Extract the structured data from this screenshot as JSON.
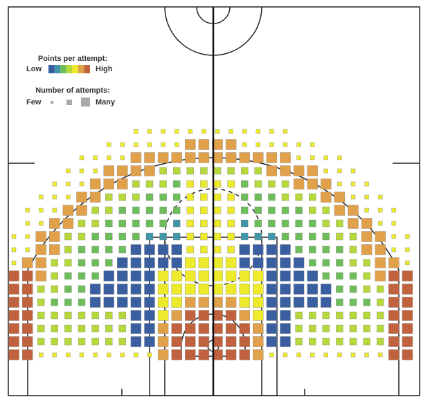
{
  "chart_data": {
    "type": "heatmap",
    "ppa_title": "Points per attempt:",
    "ppa_low": "Low",
    "ppa_high": "High",
    "colors": [
      "#3a5fa0",
      "#3f96a8",
      "#6dbd5a",
      "#b5d93a",
      "#ecea2a",
      "#e0a14a",
      "#c0623e"
    ],
    "attempts_title": "Number of attempts:",
    "attempts_few": "Few",
    "attempts_many": "Many",
    "ppa_level": [
      [
        null,
        null,
        null,
        null,
        null,
        null,
        null,
        null,
        null,
        4,
        4,
        4,
        4,
        4,
        4,
        4,
        4,
        4,
        4,
        4,
        4,
        null,
        null,
        null,
        null,
        null,
        null,
        null,
        null,
        null
      ],
      [
        null,
        null,
        null,
        null,
        null,
        null,
        null,
        4,
        4,
        4,
        4,
        4,
        4,
        5,
        5,
        5,
        5,
        4,
        4,
        4,
        4,
        4,
        4,
        null,
        null,
        null,
        null,
        null,
        null,
        null
      ],
      [
        null,
        null,
        null,
        null,
        null,
        4,
        4,
        4,
        4,
        5,
        5,
        5,
        5,
        5,
        5,
        5,
        5,
        5,
        5,
        5,
        5,
        4,
        4,
        4,
        4,
        null,
        null,
        null,
        null,
        null
      ],
      [
        null,
        null,
        null,
        null,
        4,
        4,
        4,
        5,
        5,
        5,
        5,
        3,
        3,
        3,
        3,
        3,
        3,
        3,
        3,
        5,
        5,
        5,
        5,
        4,
        4,
        4,
        null,
        null,
        null,
        null
      ],
      [
        null,
        null,
        null,
        4,
        4,
        4,
        5,
        5,
        5,
        3,
        3,
        3,
        2,
        4,
        4,
        4,
        4,
        2,
        3,
        3,
        3,
        5,
        5,
        5,
        4,
        4,
        4,
        null,
        null,
        null
      ],
      [
        null,
        null,
        4,
        4,
        4,
        5,
        5,
        3,
        3,
        3,
        2,
        2,
        2,
        4,
        4,
        4,
        4,
        2,
        2,
        2,
        3,
        3,
        3,
        5,
        5,
        4,
        4,
        4,
        null,
        null
      ],
      [
        null,
        4,
        4,
        4,
        5,
        5,
        3,
        3,
        2,
        2,
        2,
        2,
        2,
        4,
        4,
        4,
        4,
        2,
        2,
        2,
        2,
        2,
        3,
        3,
        5,
        5,
        4,
        4,
        4,
        null
      ],
      [
        null,
        4,
        4,
        5,
        5,
        3,
        3,
        2,
        2,
        2,
        2,
        2,
        1,
        4,
        4,
        4,
        4,
        1,
        2,
        2,
        2,
        2,
        2,
        3,
        3,
        5,
        5,
        4,
        4,
        null
      ],
      [
        4,
        4,
        5,
        5,
        3,
        3,
        2,
        2,
        2,
        2,
        1,
        1,
        1,
        4,
        4,
        4,
        4,
        1,
        1,
        1,
        2,
        2,
        2,
        2,
        3,
        3,
        5,
        5,
        4,
        4
      ],
      [
        4,
        4,
        5,
        5,
        3,
        2,
        2,
        2,
        2,
        0,
        0,
        0,
        0,
        4,
        4,
        4,
        4,
        0,
        0,
        0,
        0,
        2,
        2,
        2,
        2,
        3,
        5,
        5,
        4,
        4
      ],
      [
        4,
        5,
        5,
        3,
        3,
        2,
        2,
        2,
        0,
        0,
        0,
        0,
        0,
        4,
        4,
        4,
        4,
        0,
        0,
        0,
        0,
        0,
        2,
        2,
        2,
        3,
        3,
        5,
        5,
        4
      ],
      [
        6,
        6,
        5,
        3,
        2,
        2,
        2,
        0,
        0,
        0,
        0,
        4,
        4,
        4,
        4,
        4,
        4,
        4,
        4,
        0,
        0,
        0,
        0,
        2,
        2,
        2,
        3,
        5,
        6,
        6
      ],
      [
        6,
        6,
        3,
        3,
        2,
        2,
        0,
        0,
        0,
        0,
        0,
        4,
        4,
        4,
        4,
        4,
        4,
        4,
        4,
        0,
        0,
        0,
        0,
        0,
        2,
        2,
        3,
        3,
        6,
        6
      ],
      [
        6,
        6,
        3,
        2,
        2,
        2,
        0,
        0,
        0,
        0,
        0,
        4,
        4,
        5,
        5,
        5,
        5,
        4,
        4,
        0,
        0,
        0,
        0,
        0,
        2,
        2,
        2,
        3,
        6,
        6
      ],
      [
        6,
        6,
        3,
        3,
        3,
        3,
        3,
        3,
        3,
        0,
        0,
        4,
        5,
        6,
        6,
        6,
        6,
        5,
        4,
        0,
        0,
        3,
        3,
        3,
        3,
        3,
        3,
        3,
        6,
        6
      ],
      [
        6,
        6,
        3,
        3,
        3,
        3,
        3,
        3,
        3,
        0,
        0,
        5,
        6,
        6,
        6,
        6,
        6,
        6,
        5,
        0,
        0,
        3,
        3,
        3,
        3,
        3,
        3,
        3,
        6,
        6
      ],
      [
        6,
        6,
        3,
        3,
        3,
        3,
        3,
        3,
        3,
        0,
        0,
        5,
        6,
        6,
        6,
        6,
        6,
        6,
        5,
        0,
        0,
        3,
        3,
        3,
        3,
        3,
        3,
        3,
        6,
        6
      ],
      [
        6,
        6,
        4,
        4,
        4,
        4,
        4,
        4,
        4,
        4,
        4,
        5,
        6,
        6,
        6,
        6,
        6,
        6,
        5,
        4,
        4,
        4,
        4,
        4,
        4,
        4,
        4,
        4,
        6,
        6
      ]
    ],
    "attempts": [
      [
        null,
        null,
        null,
        null,
        null,
        null,
        null,
        null,
        null,
        1,
        1,
        1,
        1,
        1,
        1,
        1,
        1,
        1,
        1,
        1,
        1,
        null,
        null,
        null,
        null,
        null,
        null,
        null,
        null,
        null
      ],
      [
        null,
        null,
        null,
        null,
        null,
        null,
        null,
        1,
        1,
        1,
        1,
        1,
        1,
        3,
        3,
        3,
        3,
        1,
        1,
        1,
        1,
        1,
        1,
        null,
        null,
        null,
        null,
        null,
        null,
        null
      ],
      [
        null,
        null,
        null,
        null,
        null,
        1,
        1,
        1,
        1,
        3,
        3,
        3,
        3,
        3,
        3,
        3,
        3,
        3,
        3,
        3,
        3,
        1,
        1,
        1,
        1,
        null,
        null,
        null,
        null,
        null
      ],
      [
        null,
        null,
        null,
        null,
        1,
        1,
        1,
        3,
        3,
        3,
        3,
        2,
        2,
        2,
        2,
        2,
        2,
        2,
        2,
        3,
        3,
        3,
        3,
        1,
        1,
        1,
        null,
        null,
        null,
        null
      ],
      [
        null,
        null,
        null,
        1,
        1,
        1,
        3,
        3,
        3,
        2,
        2,
        2,
        2,
        2,
        2,
        2,
        2,
        2,
        2,
        2,
        2,
        3,
        3,
        3,
        1,
        1,
        1,
        null,
        null,
        null
      ],
      [
        null,
        null,
        1,
        1,
        1,
        3,
        3,
        2,
        2,
        2,
        2,
        2,
        2,
        2,
        2,
        2,
        2,
        2,
        2,
        2,
        2,
        2,
        2,
        3,
        3,
        1,
        1,
        1,
        null,
        null
      ],
      [
        null,
        1,
        1,
        1,
        3,
        3,
        2,
        2,
        2,
        2,
        2,
        2,
        2,
        2,
        2,
        2,
        2,
        2,
        2,
        2,
        2,
        2,
        2,
        2,
        3,
        3,
        1,
        1,
        1,
        null
      ],
      [
        null,
        1,
        1,
        3,
        3,
        2,
        2,
        2,
        2,
        2,
        2,
        2,
        2,
        2,
        2,
        2,
        2,
        2,
        2,
        2,
        2,
        2,
        2,
        2,
        2,
        3,
        3,
        1,
        1,
        null
      ],
      [
        1,
        1,
        3,
        3,
        2,
        2,
        2,
        2,
        2,
        2,
        2,
        2,
        2,
        2,
        2,
        2,
        2,
        2,
        2,
        2,
        2,
        2,
        2,
        2,
        2,
        2,
        3,
        3,
        1,
        1
      ],
      [
        1,
        1,
        3,
        3,
        2,
        2,
        2,
        2,
        2,
        3,
        3,
        3,
        3,
        2,
        2,
        2,
        2,
        3,
        3,
        3,
        3,
        2,
        2,
        2,
        2,
        2,
        3,
        3,
        1,
        1
      ],
      [
        1,
        3,
        3,
        2,
        2,
        2,
        2,
        2,
        3,
        3,
        3,
        3,
        3,
        3,
        3,
        3,
        3,
        3,
        3,
        3,
        3,
        3,
        2,
        2,
        2,
        2,
        2,
        3,
        3,
        1
      ],
      [
        3,
        3,
        3,
        2,
        2,
        2,
        2,
        3,
        3,
        3,
        3,
        3,
        3,
        3,
        3,
        3,
        3,
        3,
        3,
        3,
        3,
        3,
        3,
        2,
        2,
        2,
        2,
        3,
        3,
        3
      ],
      [
        3,
        3,
        2,
        2,
        2,
        2,
        3,
        3,
        3,
        3,
        3,
        3,
        3,
        3,
        3,
        3,
        3,
        3,
        3,
        3,
        3,
        3,
        3,
        3,
        2,
        2,
        2,
        2,
        3,
        3
      ],
      [
        3,
        3,
        2,
        2,
        2,
        2,
        3,
        3,
        3,
        3,
        3,
        3,
        3,
        3,
        3,
        3,
        3,
        3,
        3,
        3,
        3,
        3,
        3,
        3,
        2,
        2,
        2,
        2,
        3,
        3
      ],
      [
        3,
        3,
        2,
        2,
        2,
        2,
        2,
        2,
        2,
        3,
        3,
        3,
        3,
        3,
        3,
        3,
        3,
        3,
        3,
        3,
        3,
        2,
        2,
        2,
        2,
        2,
        2,
        2,
        3,
        3
      ],
      [
        3,
        3,
        2,
        2,
        2,
        2,
        2,
        2,
        2,
        3,
        3,
        3,
        3,
        3,
        3,
        3,
        3,
        3,
        3,
        3,
        3,
        2,
        2,
        2,
        2,
        2,
        2,
        2,
        3,
        3
      ],
      [
        3,
        3,
        2,
        2,
        2,
        2,
        2,
        2,
        2,
        3,
        3,
        3,
        3,
        3,
        3,
        3,
        3,
        3,
        3,
        3,
        3,
        2,
        2,
        2,
        2,
        2,
        2,
        2,
        3,
        3
      ],
      [
        3,
        3,
        1,
        1,
        1,
        1,
        1,
        1,
        1,
        1,
        1,
        3,
        3,
        3,
        3,
        3,
        3,
        3,
        3,
        1,
        1,
        1,
        1,
        1,
        1,
        1,
        1,
        1,
        3,
        3
      ]
    ]
  }
}
